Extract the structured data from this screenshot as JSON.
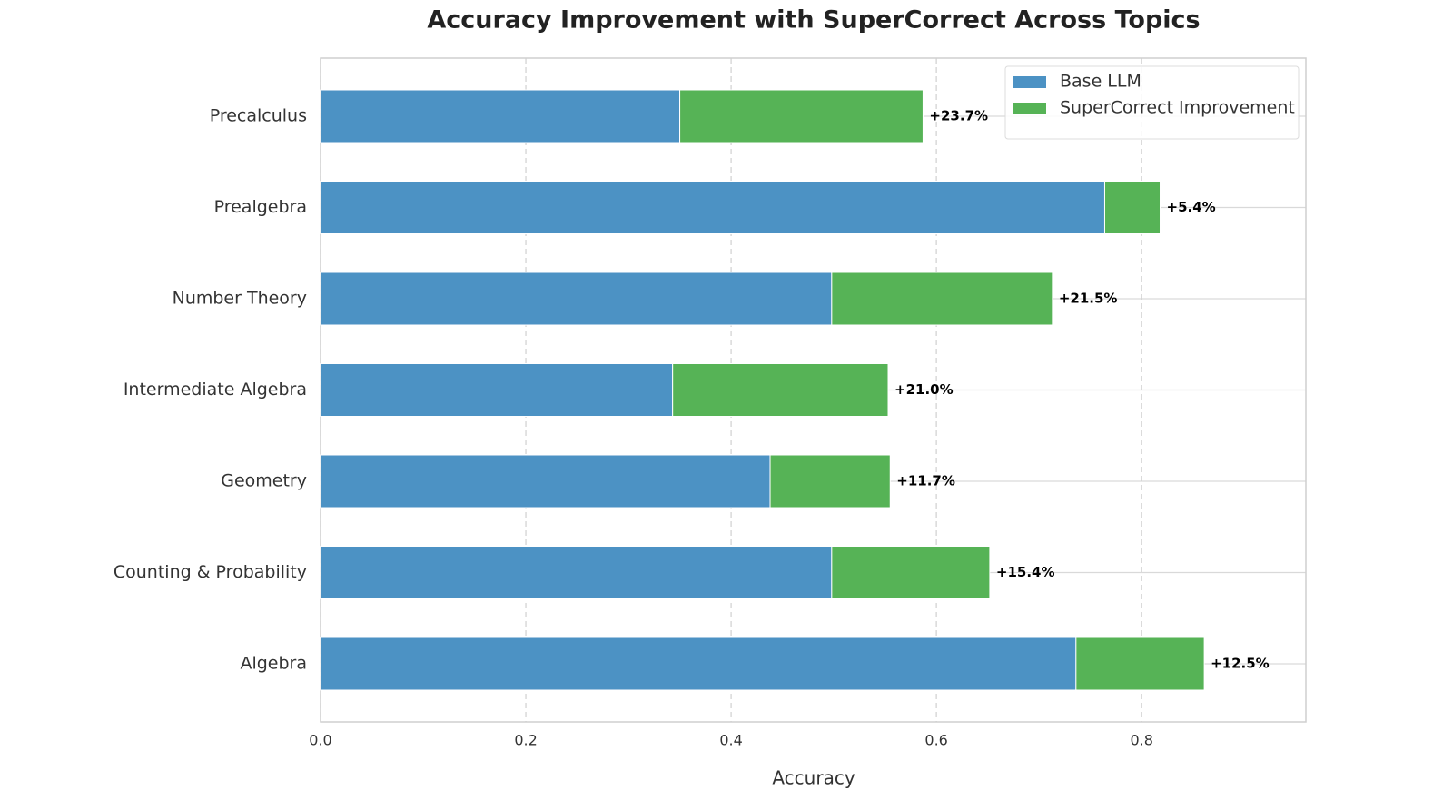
{
  "chart_data": {
    "type": "stacked-barh",
    "title": "Accuracy Improvement with SuperCorrect Across Topics",
    "x_label": "Accuracy",
    "categories": [
      "Precalculus",
      "Prealgebra",
      "Number Theory",
      "Intermediate Algebra",
      "Geometry",
      "Counting & Probability",
      "Algebra"
    ],
    "series": [
      {
        "name": "Base LLM",
        "color": "#4c92c4",
        "values": [
          0.35,
          0.764,
          0.498,
          0.343,
          0.438,
          0.498,
          0.736
        ]
      },
      {
        "name": "SuperCorrect Improvement",
        "color": "#56b356",
        "values": [
          0.237,
          0.054,
          0.215,
          0.21,
          0.117,
          0.154,
          0.125
        ],
        "value_labels": [
          "+23.7%",
          "+5.4%",
          "+21.5%",
          "+21.0%",
          "+11.7%",
          "+15.4%",
          "+12.5%"
        ]
      }
    ],
    "xlim": [
      0,
      0.96
    ],
    "xticks": [
      {
        "value": 0,
        "label": "0.0"
      },
      0.2,
      0.4,
      0.6,
      0.8
    ],
    "grid": true,
    "legend": "upper right"
  }
}
